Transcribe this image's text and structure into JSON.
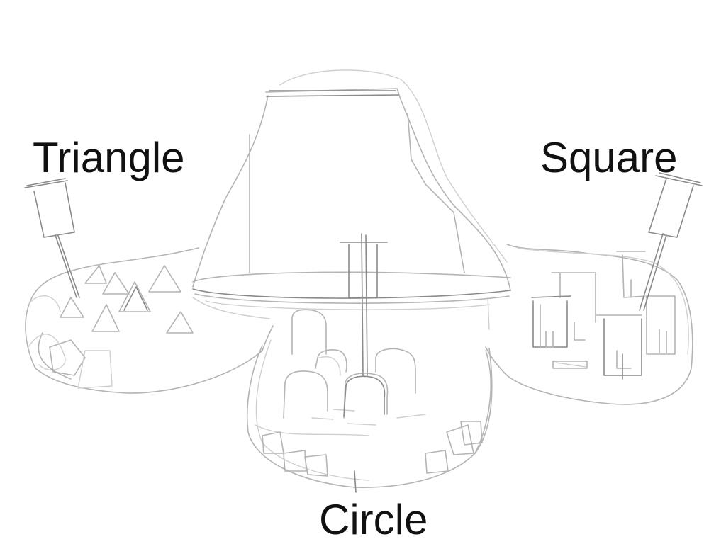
{
  "labels": {
    "triangle": "Triangle",
    "square": "Square",
    "circle": "Circle"
  },
  "colors": {
    "pencil": "#b4b4b4",
    "pencil_dark": "#8a8a8a",
    "text": "#111111",
    "background": "#ffffff"
  }
}
